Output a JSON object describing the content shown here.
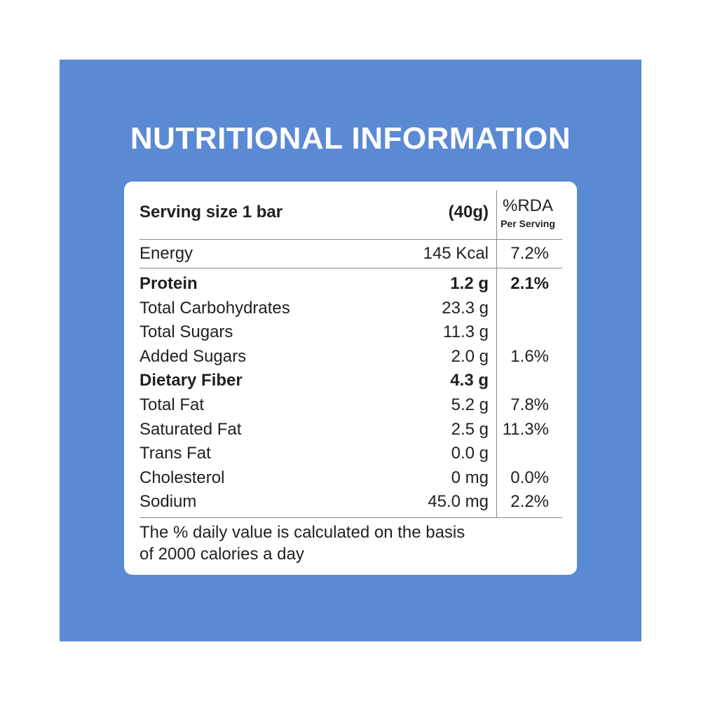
{
  "title": "NUTRITIONAL INFORMATION",
  "table": {
    "header": {
      "serving": "Serving size 1 bar",
      "weight": "(40g)",
      "rda": "%RDA",
      "rda_sub": "Per Serving"
    },
    "rows": [
      {
        "name": "Energy",
        "amount": "145 Kcal",
        "rda": "7.2%"
      },
      {
        "name": "Protein",
        "amount": "1.2 g",
        "rda": "2.1%",
        "bold": true
      },
      {
        "name": "Total Carbohydrates",
        "amount": "23.3 g"
      },
      {
        "name": "Total Sugars",
        "amount": "11.3 g"
      },
      {
        "name": "Added Sugars",
        "amount": "2.0 g",
        "rda": "1.6%"
      },
      {
        "name": "Dietary Fiber",
        "amount": "4.3 g",
        "bold": true
      },
      {
        "name": "Total Fat",
        "amount": "5.2 g",
        "rda": "7.8%"
      },
      {
        "name": "Saturated Fat",
        "amount": "2.5 g",
        "rda": "11.3%"
      },
      {
        "name": "Trans Fat",
        "amount": "0.0 g"
      },
      {
        "name": "Cholesterol",
        "amount": "0 mg",
        "rda": "0.0%"
      },
      {
        "name": "Sodium",
        "amount": "45.0 mg",
        "rda": "2.2%"
      }
    ]
  },
  "footnote": [
    "The % daily value is calculated on the basis",
    "of 2000 calories a day"
  ]
}
